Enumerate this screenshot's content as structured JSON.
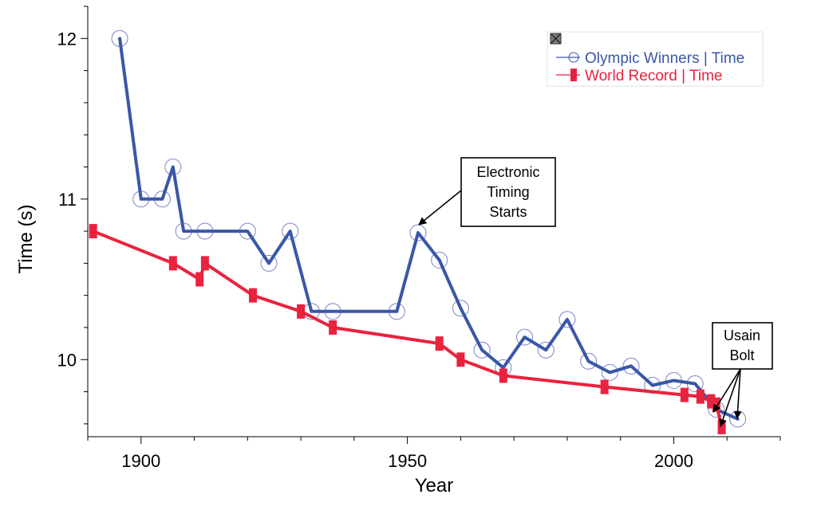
{
  "chart_data": {
    "type": "line",
    "xlabel": "Year",
    "ylabel": "Time (s)",
    "xlim": [
      1890,
      2020
    ],
    "ylim": [
      9.52,
      12.2
    ],
    "x_ticks": [
      1900,
      1950,
      2000
    ],
    "y_ticks": [
      10,
      11,
      12
    ],
    "grid": false,
    "legend_position": "top-right",
    "colors": {
      "olympic": "#3a57a7",
      "world_record": "#e8233f"
    },
    "series": [
      {
        "name": "Olympic Winners | Time",
        "x": [
          1896,
          1900,
          1904,
          1906,
          1908,
          1912,
          1920,
          1924,
          1928,
          1932,
          1936,
          1948,
          1952,
          1956,
          1960,
          1964,
          1968,
          1972,
          1976,
          1980,
          1984,
          1988,
          1992,
          1996,
          2000,
          2004,
          2008,
          2012
        ],
        "y": [
          12.0,
          11.0,
          11.0,
          11.2,
          10.8,
          10.8,
          10.8,
          10.6,
          10.8,
          10.3,
          10.3,
          10.3,
          10.79,
          10.62,
          10.32,
          10.06,
          9.95,
          10.14,
          10.06,
          10.25,
          9.99,
          9.92,
          9.96,
          9.84,
          9.87,
          9.85,
          9.69,
          9.63
        ]
      },
      {
        "name": "World Record | Time",
        "x": [
          1891,
          1906,
          1911,
          1912,
          1921,
          1930,
          1936,
          1956,
          1960,
          1968,
          1987,
          2002,
          2005,
          2007,
          2008,
          2009
        ],
        "y": [
          10.8,
          10.6,
          10.5,
          10.6,
          10.4,
          10.3,
          10.2,
          10.1,
          10.0,
          9.9,
          9.83,
          9.78,
          9.77,
          9.74,
          9.72,
          9.58
        ]
      }
    ],
    "annotations": [
      {
        "id": "electronic",
        "lines": [
          "Electronic",
          "Timing",
          "Starts"
        ],
        "x": 1952,
        "y": 10.85
      },
      {
        "id": "bolt",
        "lines": [
          "Usain",
          "Bolt"
        ],
        "targets": [
          [
            2008,
            9.69
          ],
          [
            2009,
            9.58
          ],
          [
            2012,
            9.63
          ]
        ]
      }
    ]
  }
}
